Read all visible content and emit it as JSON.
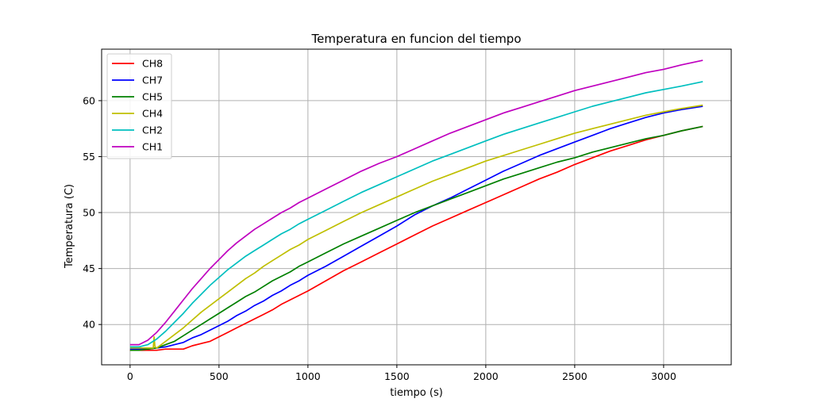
{
  "chart_data": {
    "type": "line",
    "title": "Temperatura en funcion del tiempo",
    "xlabel": "tiempo (s)",
    "ylabel": "Temperatura (C)",
    "xlim": [
      -160,
      3380
    ],
    "ylim": [
      36.4,
      64.6
    ],
    "xticks": [
      0,
      500,
      1000,
      1500,
      2000,
      2500,
      3000
    ],
    "yticks": [
      40,
      45,
      50,
      55,
      60
    ],
    "grid": true,
    "legend_position": "top-left",
    "series": [
      {
        "name": "CH8",
        "color": "#ff0000",
        "x": [
          0,
          50,
          100,
          150,
          200,
          250,
          300,
          350,
          400,
          450,
          500,
          550,
          600,
          650,
          700,
          750,
          800,
          850,
          900,
          950,
          1000,
          1100,
          1200,
          1300,
          1400,
          1500,
          1600,
          1700,
          1800,
          1900,
          2000,
          2100,
          2200,
          2300,
          2400,
          2500,
          2600,
          2700,
          2800,
          2900,
          3000,
          3100,
          3220
        ],
        "y": [
          37.7,
          37.7,
          37.7,
          37.7,
          37.8,
          37.8,
          37.8,
          38.1,
          38.3,
          38.5,
          38.9,
          39.3,
          39.7,
          40.1,
          40.5,
          40.9,
          41.3,
          41.8,
          42.2,
          42.6,
          43.0,
          43.9,
          44.8,
          45.6,
          46.4,
          47.2,
          48.0,
          48.8,
          49.5,
          50.2,
          50.9,
          51.6,
          52.3,
          53.0,
          53.6,
          54.3,
          54.9,
          55.5,
          56.0,
          56.5,
          56.9,
          57.3,
          57.7
        ]
      },
      {
        "name": "CH7",
        "color": "#0000ff",
        "x": [
          0,
          50,
          100,
          150,
          200,
          250,
          300,
          350,
          400,
          450,
          500,
          550,
          600,
          650,
          700,
          750,
          800,
          850,
          900,
          950,
          1000,
          1100,
          1200,
          1300,
          1400,
          1500,
          1600,
          1700,
          1800,
          1900,
          2000,
          2100,
          2200,
          2300,
          2400,
          2500,
          2600,
          2700,
          2800,
          2900,
          3000,
          3100,
          3220
        ],
        "y": [
          37.8,
          37.8,
          37.8,
          37.9,
          38.0,
          38.2,
          38.4,
          38.8,
          39.1,
          39.5,
          39.9,
          40.3,
          40.8,
          41.2,
          41.7,
          42.1,
          42.6,
          43.0,
          43.5,
          43.9,
          44.4,
          45.2,
          46.1,
          47.0,
          47.9,
          48.8,
          49.8,
          50.6,
          51.3,
          52.1,
          52.9,
          53.7,
          54.4,
          55.1,
          55.7,
          56.3,
          56.9,
          57.5,
          58.0,
          58.5,
          58.9,
          59.2,
          59.5
        ]
      },
      {
        "name": "CH5",
        "color": "#008000",
        "x": [
          0,
          50,
          100,
          150,
          200,
          250,
          300,
          350,
          400,
          450,
          500,
          550,
          600,
          650,
          700,
          750,
          800,
          850,
          900,
          950,
          1000,
          1100,
          1200,
          1300,
          1400,
          1500,
          1600,
          1700,
          1800,
          1900,
          2000,
          2100,
          2200,
          2300,
          2400,
          2500,
          2600,
          2700,
          2800,
          2900,
          3000,
          3100,
          3220
        ],
        "y": [
          37.7,
          37.7,
          37.8,
          37.9,
          38.2,
          38.5,
          39.0,
          39.5,
          40.0,
          40.5,
          41.0,
          41.5,
          42.0,
          42.5,
          42.9,
          43.4,
          43.9,
          44.3,
          44.7,
          45.2,
          45.6,
          46.4,
          47.2,
          47.9,
          48.6,
          49.3,
          50.0,
          50.6,
          51.2,
          51.8,
          52.4,
          53.0,
          53.5,
          54.0,
          54.5,
          54.9,
          55.4,
          55.8,
          56.2,
          56.6,
          56.9,
          57.3,
          57.7
        ]
      },
      {
        "name": "CH4",
        "color": "#bfbf00",
        "x": [
          0,
          50,
          100,
          130,
          135,
          140,
          150,
          200,
          250,
          300,
          350,
          400,
          450,
          500,
          550,
          600,
          650,
          700,
          750,
          800,
          850,
          900,
          950,
          1000,
          1100,
          1200,
          1300,
          1400,
          1500,
          1600,
          1700,
          1800,
          1900,
          2000,
          2100,
          2200,
          2300,
          2400,
          2500,
          2600,
          2700,
          2800,
          2900,
          3000,
          3100,
          3220
        ],
        "y": [
          37.9,
          37.9,
          37.9,
          37.9,
          38.9,
          38.0,
          37.9,
          38.5,
          39.1,
          39.7,
          40.4,
          41.1,
          41.7,
          42.3,
          42.9,
          43.5,
          44.1,
          44.6,
          45.2,
          45.7,
          46.2,
          46.7,
          47.1,
          47.6,
          48.4,
          49.2,
          50.0,
          50.7,
          51.4,
          52.1,
          52.8,
          53.4,
          54.0,
          54.6,
          55.1,
          55.6,
          56.1,
          56.6,
          57.1,
          57.5,
          57.9,
          58.3,
          58.7,
          59.0,
          59.3,
          59.6
        ]
      },
      {
        "name": "CH2",
        "color": "#00bfbf",
        "x": [
          0,
          50,
          100,
          150,
          200,
          250,
          300,
          350,
          400,
          450,
          500,
          550,
          600,
          650,
          700,
          750,
          800,
          850,
          900,
          950,
          1000,
          1100,
          1200,
          1300,
          1400,
          1500,
          1600,
          1700,
          1800,
          1900,
          2000,
          2100,
          2200,
          2300,
          2400,
          2500,
          2600,
          2700,
          2800,
          2900,
          3000,
          3100,
          3220
        ],
        "y": [
          38.0,
          38.0,
          38.2,
          38.7,
          39.4,
          40.2,
          41.0,
          41.9,
          42.7,
          43.5,
          44.2,
          44.9,
          45.5,
          46.1,
          46.6,
          47.1,
          47.6,
          48.1,
          48.5,
          49.0,
          49.4,
          50.2,
          51.0,
          51.8,
          52.5,
          53.2,
          53.9,
          54.6,
          55.2,
          55.8,
          56.4,
          57.0,
          57.5,
          58.0,
          58.5,
          59.0,
          59.5,
          59.9,
          60.3,
          60.7,
          61.0,
          61.3,
          61.7
        ]
      },
      {
        "name": "CH1",
        "color": "#bf00bf",
        "x": [
          0,
          50,
          100,
          150,
          200,
          250,
          300,
          350,
          400,
          450,
          500,
          550,
          600,
          650,
          700,
          750,
          800,
          850,
          900,
          950,
          1000,
          1100,
          1200,
          1300,
          1400,
          1500,
          1600,
          1700,
          1800,
          1900,
          2000,
          2100,
          2200,
          2300,
          2400,
          2500,
          2600,
          2700,
          2800,
          2900,
          3000,
          3100,
          3220
        ],
        "y": [
          38.2,
          38.2,
          38.6,
          39.3,
          40.2,
          41.2,
          42.2,
          43.2,
          44.1,
          45.0,
          45.8,
          46.6,
          47.3,
          47.9,
          48.5,
          49.0,
          49.5,
          50.0,
          50.4,
          50.9,
          51.3,
          52.1,
          52.9,
          53.7,
          54.4,
          55.0,
          55.7,
          56.4,
          57.1,
          57.7,
          58.3,
          58.9,
          59.4,
          59.9,
          60.4,
          60.9,
          61.3,
          61.7,
          62.1,
          62.5,
          62.8,
          63.2,
          63.6
        ]
      }
    ]
  }
}
